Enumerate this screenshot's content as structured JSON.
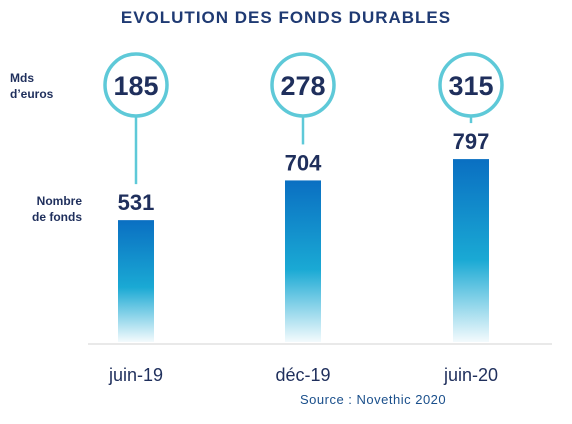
{
  "title": "EVOLUTION DES FONDS DURABLES",
  "labels": {
    "assets": "Mds\nd’euros",
    "funds": "Nombre\nde fonds"
  },
  "source": "Source :  Novethic 2020",
  "colors": {
    "title": "#1f3a73",
    "bar_top": "#0a6fc2",
    "bar_mid": "#1aa9d4",
    "circle_stroke": "#5ec9d8",
    "value_text": "#1f2f5c"
  },
  "chart_data": {
    "type": "bar",
    "categories": [
      "juin-19",
      "déc-19",
      "juin-20"
    ],
    "series": [
      {
        "name": "Nombre de fonds",
        "values": [
          531,
          704,
          797
        ]
      },
      {
        "name": "Mds d’euros",
        "values": [
          185,
          278,
          315
        ]
      }
    ],
    "title": "EVOLUTION DES FONDS DURABLES",
    "xlabel": "",
    "ylabel": "",
    "ylim": [
      0,
      900
    ],
    "grid": false
  }
}
